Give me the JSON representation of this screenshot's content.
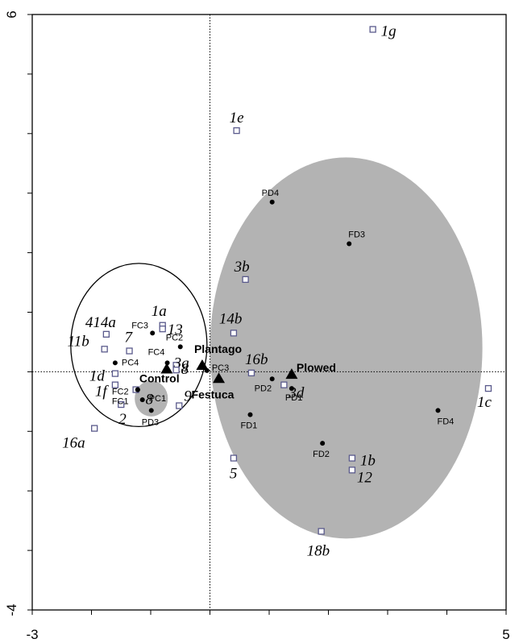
{
  "chart_data": {
    "type": "scatter",
    "title": "",
    "xlabel": "",
    "ylabel": "",
    "xlim": [
      -3,
      5
    ],
    "ylim": [
      -4,
      6
    ],
    "x_ticks_labeled": [
      "-3",
      "5"
    ],
    "y_ticks_labeled": [
      "6",
      "-4"
    ],
    "x_tick_values": [
      -3,
      -2,
      -1,
      0,
      1,
      2,
      3,
      4,
      5
    ],
    "y_tick_values": [
      -4,
      -3,
      -2,
      -1,
      0,
      1,
      2,
      3,
      4,
      5,
      6
    ],
    "reference_lines": {
      "x": 0,
      "y": 0,
      "style": "dotted"
    },
    "ellipses": [
      {
        "id": "plowed-ellipse",
        "cx": 2.3,
        "cy": 0.4,
        "rx": 2.3,
        "ry": 3.2,
        "fill": "#b3b3b3",
        "stroke": "none"
      },
      {
        "id": "control-circle",
        "cx": -1.2,
        "cy": 0.45,
        "rx": 1.15,
        "ry": 1.37,
        "fill": "none",
        "stroke": "#000000"
      },
      {
        "id": "pd3-blob",
        "cx": -0.99,
        "cy": -0.45,
        "rx": 0.28,
        "ry": 0.3,
        "fill": "#b3b3b3",
        "stroke": "none"
      }
    ],
    "groups": [
      {
        "label": "Plowed",
        "x": 1.38,
        "y": -0.05,
        "dx": 6,
        "dy": -4
      },
      {
        "label": "Plantago",
        "x": -0.13,
        "y": 0.1,
        "dx": -10,
        "dy": -16
      },
      {
        "label": "Control",
        "x": -0.73,
        "y": 0.04,
        "dx": -34,
        "dy": 16
      },
      {
        "label": "Festuca",
        "x": 0.15,
        "y": -0.12,
        "dx": -34,
        "dy": 24
      }
    ],
    "sites": [
      {
        "label": "PD4",
        "x": 1.05,
        "y": 2.85,
        "dx": -13,
        "dy": -8
      },
      {
        "label": "FD3",
        "x": 2.35,
        "y": 2.15,
        "dx": -1,
        "dy": -8
      },
      {
        "label": "FC3",
        "x": -0.97,
        "y": 0.65,
        "dx": -26,
        "dy": -6
      },
      {
        "label": "PC2",
        "x": -0.5,
        "y": 0.42,
        "dx": -18,
        "dy": -8
      },
      {
        "label": "FC4",
        "x": -0.72,
        "y": 0.15,
        "dx": -24,
        "dy": -10
      },
      {
        "label": "PC4",
        "x": -1.6,
        "y": 0.15,
        "dx": 8,
        "dy": 3
      },
      {
        "label": "PC3",
        "x": -0.05,
        "y": 0.02,
        "dx": 6,
        "dy": 0
      },
      {
        "label": "PD2",
        "x": 1.05,
        "y": -0.12,
        "dx": -22,
        "dy": 15
      },
      {
        "label": "PD1",
        "x": 1.38,
        "y": -0.28,
        "dx": -8,
        "dy": 15
      },
      {
        "label": "FC2",
        "x": -1.22,
        "y": -0.3,
        "dx": -32,
        "dy": 6
      },
      {
        "label": "FC1",
        "x": -1.22,
        "y": -0.3,
        "dx": -32,
        "dy": 18
      },
      {
        "label": "PC1",
        "x": -1.14,
        "y": -0.47,
        "dx": 8,
        "dy": 2
      },
      {
        "label": "PD3",
        "x": -0.99,
        "y": -0.65,
        "dx": -12,
        "dy": 18
      },
      {
        "label": "FD1",
        "x": 0.68,
        "y": -0.72,
        "dx": -12,
        "dy": 17
      },
      {
        "label": "FD2",
        "x": 1.9,
        "y": -1.2,
        "dx": -12,
        "dy": 17
      },
      {
        "label": "FD4",
        "x": 3.85,
        "y": -0.65,
        "dx": -1,
        "dy": 17
      }
    ],
    "species": [
      {
        "label": "1g",
        "x": 2.75,
        "y": 5.75,
        "dx": 10,
        "dy": 8
      },
      {
        "label": "1e",
        "x": 0.45,
        "y": 4.05,
        "dx": -9,
        "dy": -10
      },
      {
        "label": "3b",
        "x": 0.6,
        "y": 1.55,
        "dx": -14,
        "dy": -10
      },
      {
        "label": "1a",
        "x": -0.8,
        "y": 0.78,
        "dx": -14,
        "dy": -12
      },
      {
        "label": "13",
        "x": -0.8,
        "y": 0.72,
        "dx": 6,
        "dy": 7
      },
      {
        "label": "414a",
        "x": -1.75,
        "y": 0.63,
        "dx": -26,
        "dy": -9
      },
      {
        "label": "11b",
        "x": -1.78,
        "y": 0.38,
        "dx": -46,
        "dy": -4
      },
      {
        "label": "14b",
        "x": 0.4,
        "y": 0.65,
        "dx": -18,
        "dy": -12
      },
      {
        "label": "7",
        "x": -1.36,
        "y": 0.35,
        "dx": -6,
        "dy": -11
      },
      {
        "label": "3g",
        "x": -0.57,
        "y": 0.11,
        "dx": -3,
        "dy": 3
      },
      {
        "label": "8",
        "x": -0.57,
        "y": 0.03,
        "dx": 6,
        "dy": 5
      },
      {
        "label": "16b",
        "x": 0.7,
        "y": -0.02,
        "dx": -8,
        "dy": -11
      },
      {
        "label": "1d",
        "x": -1.6,
        "y": -0.03,
        "dx": -32,
        "dy": 9
      },
      {
        "label": "1f",
        "x": -1.6,
        "y": -0.22,
        "dx": -25,
        "dy": 14
      },
      {
        "label": "3d",
        "x": 1.25,
        "y": -0.22,
        "dx": 6,
        "dy": 16
      },
      {
        "label": "8",
        "x": -1.25,
        "y": -0.3,
        "dx": 12,
        "dy": 18
      },
      {
        "label": "2",
        "x": -1.5,
        "y": -0.55,
        "dx": -3,
        "dy": 24
      },
      {
        "label": "9",
        "x": -0.52,
        "y": -0.57,
        "dx": 6,
        "dy": -6
      },
      {
        "label": "1c",
        "x": 4.7,
        "y": -0.28,
        "dx": -14,
        "dy": 23
      },
      {
        "label": "16a",
        "x": -1.95,
        "y": -0.95,
        "dx": -40,
        "dy": 24
      },
      {
        "label": "5",
        "x": 0.4,
        "y": -1.45,
        "dx": -5,
        "dy": 25
      },
      {
        "label": "1b",
        "x": 2.4,
        "y": -1.45,
        "dx": 10,
        "dy": 9
      },
      {
        "label": "12",
        "x": 2.4,
        "y": -1.65,
        "dx": 6,
        "dy": 15
      },
      {
        "label": "18b",
        "x": 1.88,
        "y": -2.68,
        "dx": -18,
        "dy": 30
      }
    ],
    "legend": "none",
    "grid": false
  }
}
